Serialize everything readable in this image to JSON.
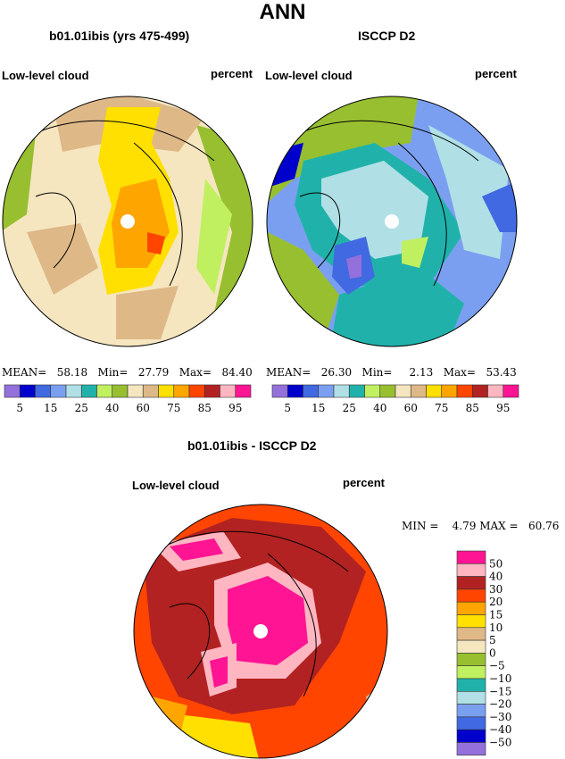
{
  "title": "ANN",
  "panels": [
    {
      "title": "b01.01ibis (yrs 475-499)",
      "variable": "Low-level cloud",
      "units": "percent",
      "stats": {
        "mean_label": "MEAN=",
        "mean": "58.18",
        "min_label": "Min=",
        "min": "27.79",
        "max_label": "Max=",
        "max": "84.40"
      }
    },
    {
      "title": "ISCCP D2",
      "variable": "Low-level cloud",
      "units": "percent",
      "stats": {
        "mean_label": "MEAN=",
        "mean": "26.30",
        "min_label": "Min=",
        "min": "2.13",
        "max_label": "Max=",
        "max": "53.43"
      }
    },
    {
      "title": "b01.01ibis - ISCCP D2",
      "variable": "Low-level cloud",
      "units": "percent",
      "stats": {
        "min_label": "MIN =",
        "min": "4.79",
        "max_label": "MAX =",
        "max": "60.76"
      }
    }
  ],
  "colorbar_abs": {
    "colors": [
      "#9370db",
      "#0000cd",
      "#4169e1",
      "#7b9ff0",
      "#b0e0e6",
      "#20b2aa",
      "#c0f060",
      "#98bf30",
      "#f5e6c0",
      "#deb887",
      "#ffe000",
      "#ffa500",
      "#ff4500",
      "#b22222",
      "#ffb6c1",
      "#ff1493"
    ],
    "labels": [
      "5",
      "15",
      "25",
      "40",
      "60",
      "75",
      "85",
      "95"
    ]
  },
  "colorbar_diff": {
    "colors": [
      "#ff1493",
      "#ffb6c1",
      "#b22222",
      "#ff4500",
      "#ffa500",
      "#ffe000",
      "#deb887",
      "#f5e6c0",
      "#98bf30",
      "#c0f060",
      "#20b2aa",
      "#b0e0e6",
      "#7b9ff0",
      "#4169e1",
      "#0000cd",
      "#9370db"
    ],
    "labels": [
      "50",
      "40",
      "30",
      "20",
      "15",
      "10",
      "5",
      "0",
      "−5",
      "−10",
      "−15",
      "−20",
      "−30",
      "−40",
      "−50"
    ]
  }
}
